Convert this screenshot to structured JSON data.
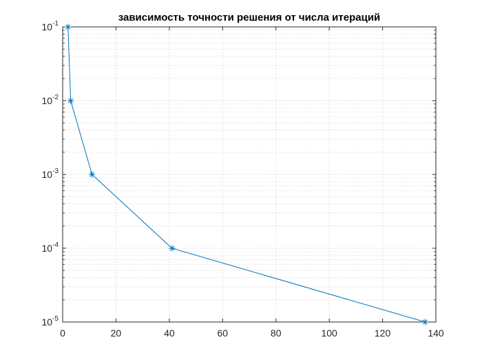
{
  "chart_data": {
    "type": "line",
    "title": "зависимость точности решения от числа итераций",
    "xlabel": "",
    "ylabel": "",
    "xlim": [
      0,
      140
    ],
    "ylim": [
      1e-05,
      0.1
    ],
    "yscale": "log",
    "xticks": [
      "0",
      "20",
      "40",
      "60",
      "80",
      "100",
      "120",
      "140"
    ],
    "yticks": [
      {
        "base": "10",
        "exp": "-5"
      },
      {
        "base": "10",
        "exp": "-4"
      },
      {
        "base": "10",
        "exp": "-3"
      },
      {
        "base": "10",
        "exp": "-2"
      },
      {
        "base": "10",
        "exp": "-1"
      }
    ],
    "grid": true,
    "minor_grid": true,
    "marker": "asterisk",
    "series": [
      {
        "color": "#0072BD",
        "points": [
          {
            "x": 2,
            "y": 0.1
          },
          {
            "x": 3,
            "y": 0.01
          },
          {
            "x": 11,
            "y": 0.001
          },
          {
            "x": 41,
            "y": 0.0001
          },
          {
            "x": 136,
            "y": 1e-05
          }
        ]
      }
    ]
  }
}
